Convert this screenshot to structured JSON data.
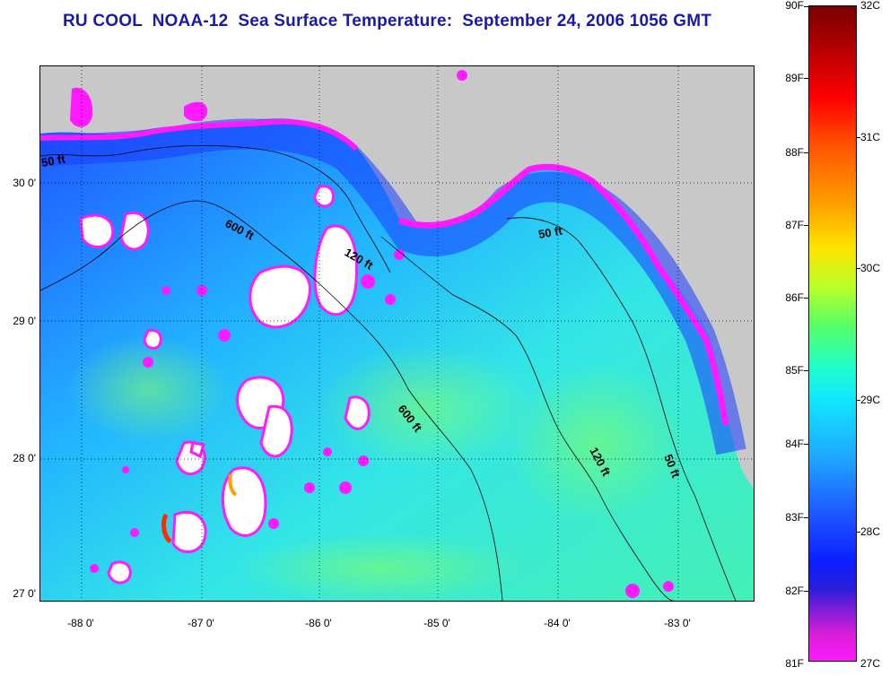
{
  "title": "RU COOL  NOAA-12  Sea Surface Temperature:  September 24, 2006 1056 GMT",
  "map": {
    "latitude_labels": [
      "30 0'",
      "29 0'",
      "28 0'",
      "27 0'"
    ],
    "longitude_labels": [
      "-88 0'",
      "-87 0'",
      "-86 0'",
      "-85 0'",
      "-84 0'",
      "-83 0'"
    ],
    "contour_labels": [
      "50 ft",
      "600 ft",
      "120 ft",
      "50 ft",
      "600 ft",
      "120 ft",
      "50 ft"
    ],
    "land_color": "#c8c8c8",
    "gridlines": "dotted"
  },
  "colorbar": {
    "fahrenheit_labels": [
      "90F",
      "89F",
      "88F",
      "87F",
      "86F",
      "85F",
      "84F",
      "83F",
      "82F",
      "81F"
    ],
    "celsius_labels": [
      "32C",
      "31C",
      "30C",
      "29C",
      "28C",
      "27C"
    ],
    "top_color": "#7a0000",
    "bottom_color": "#ff1aff"
  }
}
